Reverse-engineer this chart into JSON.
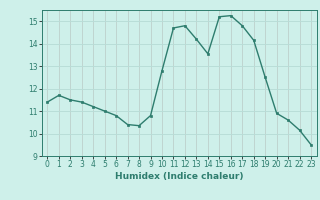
{
  "x": [
    0,
    1,
    2,
    3,
    4,
    5,
    6,
    7,
    8,
    9,
    10,
    11,
    12,
    13,
    14,
    15,
    16,
    17,
    18,
    19,
    20,
    21,
    22,
    23
  ],
  "y": [
    11.4,
    11.7,
    11.5,
    11.4,
    11.2,
    11.0,
    10.8,
    10.4,
    10.35,
    10.8,
    12.8,
    14.7,
    14.8,
    14.2,
    13.55,
    15.2,
    15.25,
    14.8,
    14.15,
    12.5,
    10.9,
    10.6,
    10.15,
    9.5
  ],
  "title": "",
  "xlabel": "Humidex (Indice chaleur)",
  "ylabel": "",
  "ylim": [
    9,
    15.5
  ],
  "xlim": [
    -0.5,
    23.5
  ],
  "yticks": [
    9,
    10,
    11,
    12,
    13,
    14,
    15
  ],
  "xticks": [
    0,
    1,
    2,
    3,
    4,
    5,
    6,
    7,
    8,
    9,
    10,
    11,
    12,
    13,
    14,
    15,
    16,
    17,
    18,
    19,
    20,
    21,
    22,
    23
  ],
  "line_color": "#2e7d6e",
  "marker_color": "#2e7d6e",
  "bg_color": "#cef0ea",
  "grid_color": "#b8ddd7",
  "axis_color": "#2e7d6e",
  "tick_label_color": "#2e7d6e",
  "xlabel_color": "#2e7d6e"
}
